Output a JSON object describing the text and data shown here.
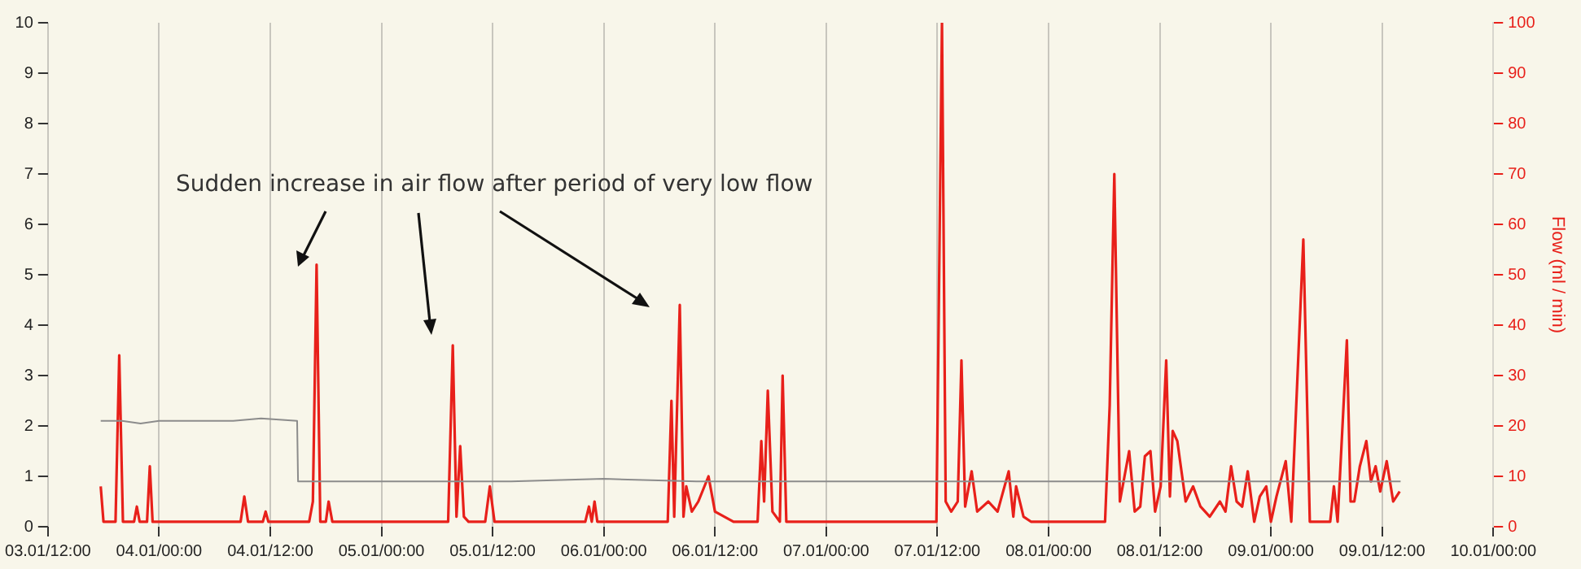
{
  "chart_data": {
    "type": "line",
    "y2label": "Flow (ml / min)",
    "annotations": [
      "Sudden increase in air flow after period of very low flow"
    ],
    "xlim": [
      "--01-03T12:00",
      "--01-10T00:00"
    ],
    "xticks": [
      {
        "value": "--01-03T12:00",
        "label": "03.01/12:00"
      },
      {
        "value": "--01-04T00:00",
        "label": "04.01/00:00"
      },
      {
        "value": "--01-04T12:00",
        "label": "04.01/12:00"
      },
      {
        "value": "--01-05T00:00",
        "label": "05.01/00:00"
      },
      {
        "value": "--01-05T12:00",
        "label": "05.01/12:00"
      },
      {
        "value": "--01-06T00:00",
        "label": "06.01/00:00"
      },
      {
        "value": "--01-06T12:00",
        "label": "06.01/12:00"
      },
      {
        "value": "--01-07T00:00",
        "label": "07.01/00:00"
      },
      {
        "value": "--01-07T12:00",
        "label": "07.01/12:00"
      },
      {
        "value": "--01-08T00:00",
        "label": "08.01/00:00"
      },
      {
        "value": "--01-08T12:00",
        "label": "08.01/12:00"
      },
      {
        "value": "--01-09T00:00",
        "label": "09.01/00:00"
      },
      {
        "value": "--01-09T12:00",
        "label": "09.01/12:00"
      },
      {
        "value": "--01-10T00:00",
        "label": "10.01/00:00"
      }
    ],
    "ylim": [
      0,
      10
    ],
    "yticks": [
      0,
      1,
      2,
      3,
      4,
      5,
      6,
      7,
      8,
      9,
      10
    ],
    "y2lim": [
      0,
      100
    ],
    "y2ticks": [
      0,
      10,
      20,
      30,
      40,
      50,
      60,
      70,
      80,
      90,
      100
    ],
    "grid": "x",
    "marker": "none",
    "line_style": "solid",
    "series": [
      {
        "color": "#8c8c8c",
        "x": [
          "--01-03T17:42",
          "--01-03T20:00",
          "--01-03T22:00",
          "--01-04T00:00",
          "--01-04T03:00",
          "--01-04T06:00",
          "--01-04T08:00",
          "--01-04T11:00",
          "--01-04T14:54",
          "--01-04T15:00",
          "--01-04T18:00",
          "--01-05T04:00",
          "--01-05T14:00",
          "--01-06T00:00",
          "--01-06T10:00",
          "--01-06T20:00",
          "--01-07T06:00",
          "--01-07T16:00",
          "--01-08T02:00",
          "--01-08T12:00",
          "--01-08T22:00",
          "--01-09T08:00",
          "--01-09T14:00"
        ],
        "values": [
          2.1,
          2.1,
          2.05,
          2.1,
          2.1,
          2.1,
          2.1,
          2.15,
          2.1,
          0.9,
          0.9,
          0.9,
          0.9,
          0.95,
          0.9,
          0.9,
          0.9,
          0.9,
          0.9,
          0.9,
          0.9,
          0.9,
          0.9
        ]
      },
      {
        "color": "#e8201a",
        "axis": "y2",
        "x": [
          "--01-03T17:42",
          "--01-03T18:00",
          "--01-03T19:18",
          "--01-03T19:42",
          "--01-03T20:06",
          "--01-03T21:18",
          "--01-03T21:36",
          "--01-03T21:54",
          "--01-03T22:42",
          "--01-03T23:00",
          "--01-03T23:18",
          "--01-04T08:48",
          "--01-04T09:12",
          "--01-04T09:36",
          "--01-04T11:12",
          "--01-04T11:30",
          "--01-04T11:48",
          "--01-04T16:12",
          "--01-04T16:36",
          "--01-04T17:00",
          "--01-04T17:24",
          "--01-04T18:00",
          "--01-04T18:18",
          "--01-04T18:42",
          "--01-05T07:12",
          "--01-05T07:42",
          "--01-05T08:06",
          "--01-05T08:30",
          "--01-05T08:54",
          "--01-05T09:24",
          "--01-05T11:12",
          "--01-05T11:42",
          "--01-05T12:12",
          "--01-05T22:00",
          "--01-05T22:24",
          "--01-05T22:42",
          "--01-05T23:00",
          "--01-05T23:18",
          "--01-06T06:54",
          "--01-06T07:18",
          "--01-06T07:36",
          "--01-06T08:12",
          "--01-06T08:36",
          "--01-06T08:54",
          "--01-06T09:30",
          "--01-06T10:12",
          "--01-06T11:18",
          "--01-06T12:00",
          "--01-06T13:00",
          "--01-06T14:00",
          "--01-06T16:36",
          "--01-06T17:00",
          "--01-06T17:18",
          "--01-06T17:42",
          "--01-06T18:12",
          "--01-06T19:00",
          "--01-06T19:18",
          "--01-06T19:42",
          "--01-07T11:54",
          "--01-07T12:30",
          "--01-07T12:54",
          "--01-07T13:30",
          "--01-07T14:12",
          "--01-07T14:36",
          "--01-07T15:00",
          "--01-07T15:42",
          "--01-07T16:18",
          "--01-07T17:30",
          "--01-07T18:30",
          "--01-07T19:42",
          "--01-07T20:12",
          "--01-07T20:30",
          "--01-07T21:18",
          "--01-07T22:06",
          "--01-08T06:06",
          "--01-08T06:36",
          "--01-08T07:06",
          "--01-08T07:42",
          "--01-08T08:12",
          "--01-08T08:42",
          "--01-08T09:18",
          "--01-08T09:54",
          "--01-08T10:24",
          "--01-08T11:00",
          "--01-08T11:30",
          "--01-08T12:06",
          "--01-08T12:42",
          "--01-08T13:06",
          "--01-08T13:24",
          "--01-08T13:54",
          "--01-08T14:48",
          "--01-08T15:36",
          "--01-08T16:24",
          "--01-08T17:24",
          "--01-08T18:30",
          "--01-08T19:06",
          "--01-08T19:42",
          "--01-08T20:18",
          "--01-08T20:54",
          "--01-08T21:30",
          "--01-08T22:12",
          "--01-08T22:48",
          "--01-08T23:30",
          "--01-09T00:00",
          "--01-09T00:36",
          "--01-09T01:36",
          "--01-09T02:12",
          "--01-09T03:30",
          "--01-09T04:12",
          "--01-09T06:24",
          "--01-09T06:48",
          "--01-09T07:12",
          "--01-09T08:12",
          "--01-09T08:36",
          "--01-09T09:00",
          "--01-09T09:36",
          "--01-09T10:18",
          "--01-09T10:48",
          "--01-09T11:18",
          "--01-09T11:48",
          "--01-09T12:30",
          "--01-09T13:12",
          "--01-09T13:54"
        ],
        "values": [
          8,
          1,
          1,
          34,
          1,
          1,
          4,
          1,
          1,
          12,
          1,
          1,
          6,
          1,
          1,
          3,
          1,
          1,
          5,
          52,
          1,
          1,
          5,
          1,
          1,
          36,
          2,
          16,
          2,
          1,
          1,
          8,
          1,
          1,
          4,
          1,
          5,
          1,
          1,
          25,
          2,
          44,
          2,
          8,
          3,
          5,
          10,
          3,
          2,
          1,
          1,
          17,
          5,
          27,
          3,
          1,
          30,
          1,
          1,
          100,
          5,
          3,
          5,
          33,
          4,
          11,
          3,
          5,
          3,
          11,
          2,
          8,
          2,
          1,
          1,
          24,
          70,
          5,
          10,
          15,
          3,
          4,
          14,
          15,
          3,
          8,
          33,
          6,
          19,
          17,
          5,
          8,
          4,
          2,
          5,
          3,
          12,
          5,
          4,
          11,
          1,
          6,
          8,
          1,
          6,
          13,
          1,
          57,
          1,
          1,
          8,
          1,
          37,
          5,
          5,
          12,
          17,
          9,
          12,
          7,
          13,
          5,
          7
        ]
      }
    ]
  }
}
